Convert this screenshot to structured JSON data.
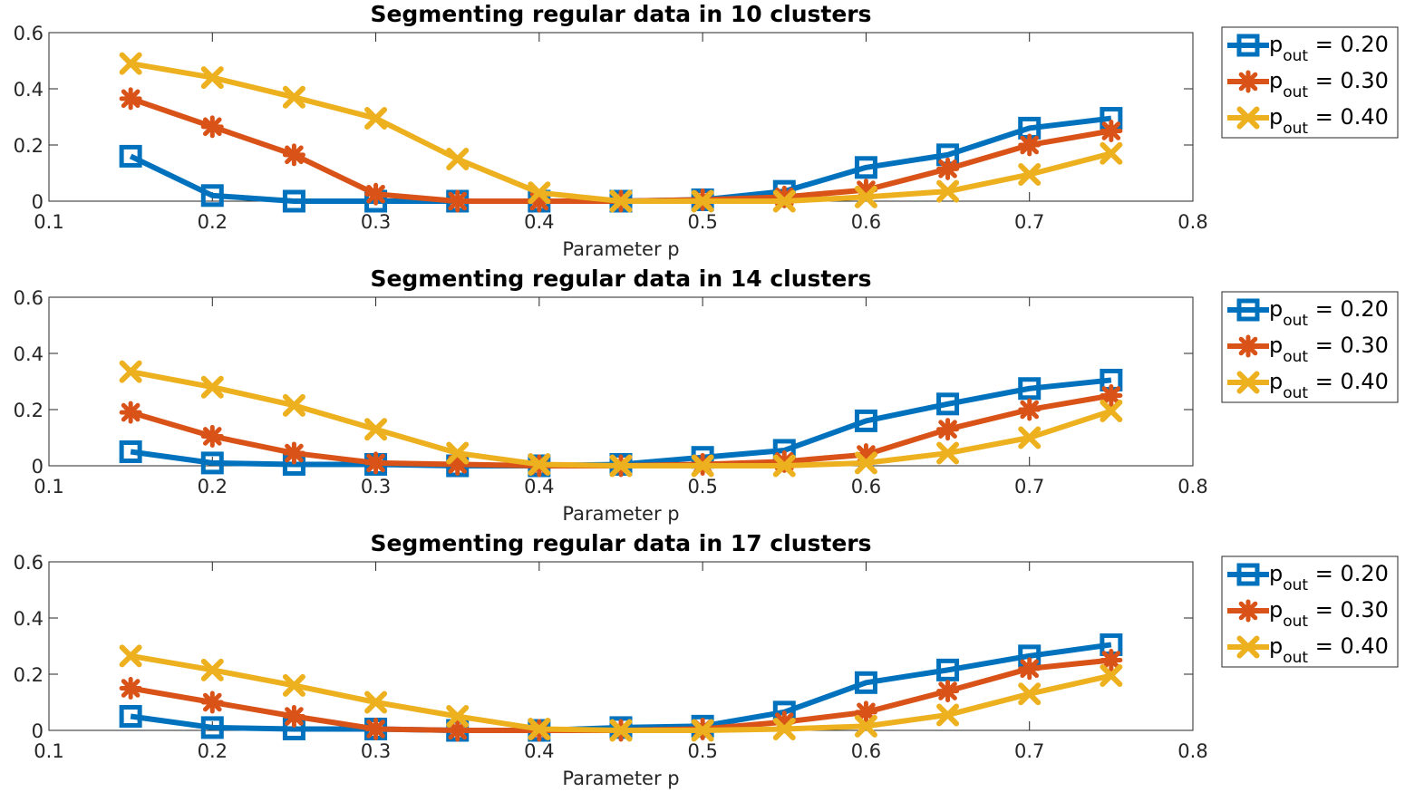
{
  "chart_data": [
    {
      "type": "line",
      "title": "Segmenting regular data in 10 clusters",
      "xlabel": "Parameter p",
      "ylabel": "",
      "xlim": [
        0.1,
        0.8
      ],
      "ylim": [
        0,
        0.6
      ],
      "xticks": [
        "0.1",
        "0.2",
        "0.3",
        "0.4",
        "0.5",
        "0.6",
        "0.7",
        "0.8"
      ],
      "yticks": [
        "0",
        "0.2",
        "0.4",
        "0.6"
      ],
      "x": [
        0.15,
        0.2,
        0.25,
        0.3,
        0.35,
        0.4,
        0.45,
        0.5,
        0.55,
        0.6,
        0.65,
        0.7,
        0.75
      ],
      "series": [
        {
          "name": "p_out = 0.20",
          "label_main": "p",
          "label_sub": "out",
          "label_rest": " = 0.20",
          "color": "#0072BD",
          "marker": "square",
          "values": [
            0.16,
            0.02,
            0.0,
            0.0,
            0.0,
            0.0,
            0.0,
            0.005,
            0.035,
            0.12,
            0.165,
            0.26,
            0.295
          ]
        },
        {
          "name": "p_out = 0.30",
          "label_main": "p",
          "label_sub": "out",
          "label_rest": " = 0.30",
          "color": "#D95319",
          "marker": "asterisk",
          "values": [
            0.365,
            0.265,
            0.165,
            0.025,
            0.0,
            0.0,
            0.0,
            0.005,
            0.015,
            0.04,
            0.115,
            0.2,
            0.25
          ]
        },
        {
          "name": "p_out = 0.40",
          "label_main": "p",
          "label_sub": "out",
          "label_rest": " = 0.40",
          "color": "#EDB120",
          "marker": "x",
          "values": [
            0.49,
            0.44,
            0.37,
            0.295,
            0.15,
            0.03,
            0.0,
            0.0,
            0.0,
            0.015,
            0.035,
            0.095,
            0.17
          ]
        }
      ]
    },
    {
      "type": "line",
      "title": "Segmenting regular data in 14 clusters",
      "xlabel": "Parameter p",
      "ylabel": "",
      "xlim": [
        0.1,
        0.8
      ],
      "ylim": [
        0,
        0.6
      ],
      "xticks": [
        "0.1",
        "0.2",
        "0.3",
        "0.4",
        "0.5",
        "0.6",
        "0.7",
        "0.8"
      ],
      "yticks": [
        "0",
        "0.2",
        "0.4",
        "0.6"
      ],
      "x": [
        0.15,
        0.2,
        0.25,
        0.3,
        0.35,
        0.4,
        0.45,
        0.5,
        0.55,
        0.6,
        0.65,
        0.7,
        0.75
      ],
      "series": [
        {
          "name": "p_out = 0.20",
          "label_main": "p",
          "label_sub": "out",
          "label_rest": " = 0.20",
          "color": "#0072BD",
          "marker": "square",
          "values": [
            0.05,
            0.01,
            0.005,
            0.005,
            0.0,
            0.0,
            0.005,
            0.03,
            0.055,
            0.16,
            0.22,
            0.275,
            0.305
          ]
        },
        {
          "name": "p_out = 0.30",
          "label_main": "p",
          "label_sub": "out",
          "label_rest": " = 0.30",
          "color": "#D95319",
          "marker": "asterisk",
          "values": [
            0.19,
            0.105,
            0.045,
            0.01,
            0.005,
            0.0,
            0.0,
            0.005,
            0.015,
            0.04,
            0.13,
            0.2,
            0.25
          ]
        },
        {
          "name": "p_out = 0.40",
          "label_main": "p",
          "label_sub": "out",
          "label_rest": " = 0.40",
          "color": "#EDB120",
          "marker": "x",
          "values": [
            0.335,
            0.28,
            0.215,
            0.13,
            0.045,
            0.005,
            0.0,
            0.0,
            0.0,
            0.01,
            0.045,
            0.1,
            0.195
          ]
        }
      ]
    },
    {
      "type": "line",
      "title": "Segmenting regular data in 17 clusters",
      "xlabel": "Parameter p",
      "ylabel": "",
      "xlim": [
        0.1,
        0.8
      ],
      "ylim": [
        0,
        0.6
      ],
      "xticks": [
        "0.1",
        "0.2",
        "0.3",
        "0.4",
        "0.5",
        "0.6",
        "0.7",
        "0.8"
      ],
      "yticks": [
        "0",
        "0.2",
        "0.4",
        "0.6"
      ],
      "x": [
        0.15,
        0.2,
        0.25,
        0.3,
        0.35,
        0.4,
        0.45,
        0.5,
        0.55,
        0.6,
        0.65,
        0.7,
        0.75
      ],
      "series": [
        {
          "name": "p_out = 0.20",
          "label_main": "p",
          "label_sub": "out",
          "label_rest": " = 0.20",
          "color": "#0072BD",
          "marker": "square",
          "values": [
            0.05,
            0.01,
            0.005,
            0.005,
            0.0,
            0.0,
            0.01,
            0.015,
            0.065,
            0.17,
            0.215,
            0.265,
            0.305
          ]
        },
        {
          "name": "p_out = 0.30",
          "label_main": "p",
          "label_sub": "out",
          "label_rest": " = 0.30",
          "color": "#D95319",
          "marker": "asterisk",
          "values": [
            0.15,
            0.1,
            0.05,
            0.005,
            0.0,
            0.0,
            0.0,
            0.005,
            0.03,
            0.065,
            0.14,
            0.22,
            0.25
          ]
        },
        {
          "name": "p_out = 0.40",
          "label_main": "p",
          "label_sub": "out",
          "label_rest": " = 0.40",
          "color": "#EDB120",
          "marker": "x",
          "values": [
            0.265,
            0.215,
            0.16,
            0.1,
            0.05,
            0.005,
            0.0,
            0.0,
            0.005,
            0.015,
            0.055,
            0.13,
            0.195
          ]
        }
      ]
    }
  ]
}
